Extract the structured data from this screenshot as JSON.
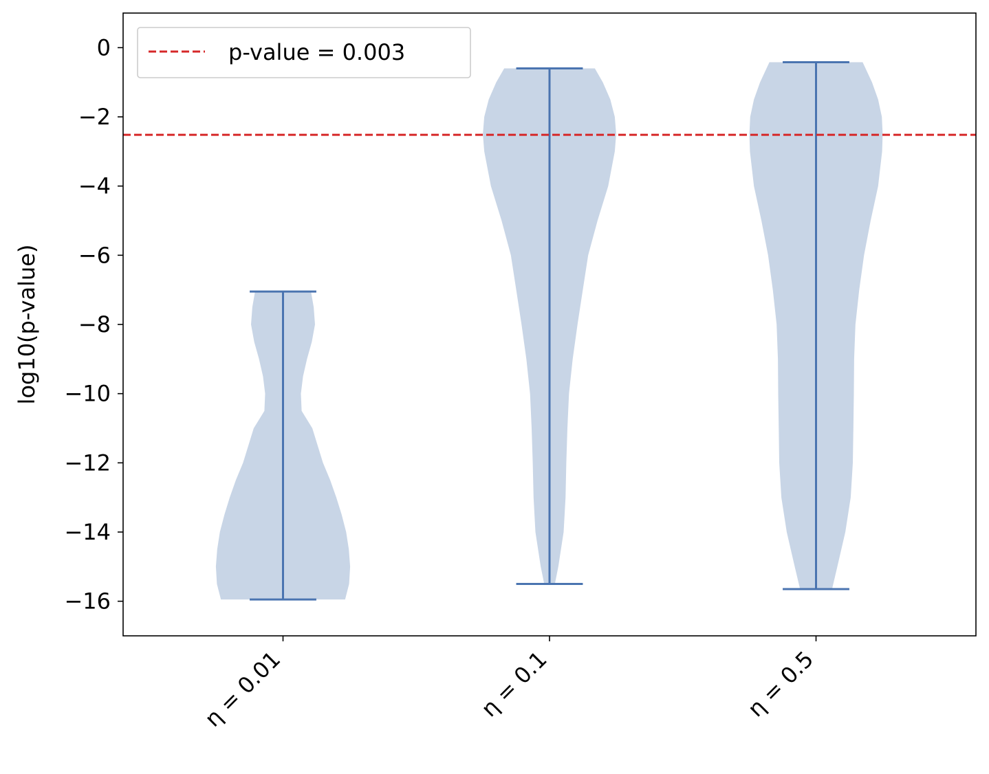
{
  "chart_data": {
    "type": "violin",
    "title": "",
    "xlabel": "",
    "ylabel": "log10(p-value)",
    "ylim": [
      -17,
      1
    ],
    "yticks": [
      0,
      -2,
      -4,
      -6,
      -8,
      -10,
      -12,
      -14,
      -16
    ],
    "ytick_labels": [
      "0",
      "−2",
      "−4",
      "−6",
      "−8",
      "−10",
      "−12",
      "−14",
      "−16"
    ],
    "categories": [
      "η = 0.01",
      "η = 0.1",
      "η = 0.5"
    ],
    "grid": false,
    "legend_position": "top-left",
    "violins": [
      {
        "category": "η = 0.01",
        "min": -15.95,
        "max": -7.05,
        "density_profile": [
          {
            "y": -15.95,
            "half_width": 0.233
          },
          {
            "y": -15.5,
            "half_width": 0.248
          },
          {
            "y": -15.0,
            "half_width": 0.252
          },
          {
            "y": -14.5,
            "half_width": 0.247
          },
          {
            "y": -14.0,
            "half_width": 0.237
          },
          {
            "y": -13.5,
            "half_width": 0.22
          },
          {
            "y": -13.0,
            "half_width": 0.2
          },
          {
            "y": -12.5,
            "half_width": 0.177
          },
          {
            "y": -12.0,
            "half_width": 0.15
          },
          {
            "y": -11.5,
            "half_width": 0.13
          },
          {
            "y": -11.0,
            "half_width": 0.11
          },
          {
            "y": -10.5,
            "half_width": 0.07
          },
          {
            "y": -10.0,
            "half_width": 0.067
          },
          {
            "y": -9.5,
            "half_width": 0.075
          },
          {
            "y": -9.0,
            "half_width": 0.09
          },
          {
            "y": -8.5,
            "half_width": 0.108
          },
          {
            "y": -8.0,
            "half_width": 0.12
          },
          {
            "y": -7.5,
            "half_width": 0.115
          },
          {
            "y": -7.05,
            "half_width": 0.105
          }
        ]
      },
      {
        "category": "η = 0.1",
        "min": -15.5,
        "max": -0.6,
        "density_profile": [
          {
            "y": -15.5,
            "half_width": 0.02
          },
          {
            "y": -15.0,
            "half_width": 0.033
          },
          {
            "y": -14.0,
            "half_width": 0.053
          },
          {
            "y": -13.0,
            "half_width": 0.06
          },
          {
            "y": -12.0,
            "half_width": 0.063
          },
          {
            "y": -11.0,
            "half_width": 0.067
          },
          {
            "y": -10.0,
            "half_width": 0.073
          },
          {
            "y": -9.0,
            "half_width": 0.087
          },
          {
            "y": -8.0,
            "half_width": 0.105
          },
          {
            "y": -7.0,
            "half_width": 0.125
          },
          {
            "y": -6.0,
            "half_width": 0.145
          },
          {
            "y": -5.0,
            "half_width": 0.18
          },
          {
            "y": -4.0,
            "half_width": 0.22
          },
          {
            "y": -3.0,
            "half_width": 0.245
          },
          {
            "y": -2.5,
            "half_width": 0.25
          },
          {
            "y": -2.0,
            "half_width": 0.245
          },
          {
            "y": -1.5,
            "half_width": 0.228
          },
          {
            "y": -1.0,
            "half_width": 0.2
          },
          {
            "y": -0.6,
            "half_width": 0.17
          }
        ]
      },
      {
        "category": "η = 0.5",
        "min": -15.65,
        "max": -0.42,
        "density_profile": [
          {
            "y": -15.65,
            "half_width": 0.06
          },
          {
            "y": -15.0,
            "half_width": 0.08
          },
          {
            "y": -14.0,
            "half_width": 0.11
          },
          {
            "y": -13.0,
            "half_width": 0.13
          },
          {
            "y": -12.0,
            "half_width": 0.138
          },
          {
            "y": -11.0,
            "half_width": 0.14
          },
          {
            "y": -10.0,
            "half_width": 0.142
          },
          {
            "y": -9.0,
            "half_width": 0.143
          },
          {
            "y": -8.0,
            "half_width": 0.148
          },
          {
            "y": -7.0,
            "half_width": 0.162
          },
          {
            "y": -6.0,
            "half_width": 0.18
          },
          {
            "y": -5.0,
            "half_width": 0.205
          },
          {
            "y": -4.0,
            "half_width": 0.233
          },
          {
            "y": -3.0,
            "half_width": 0.248
          },
          {
            "y": -2.5,
            "half_width": 0.25
          },
          {
            "y": -2.0,
            "half_width": 0.247
          },
          {
            "y": -1.5,
            "half_width": 0.233
          },
          {
            "y": -1.0,
            "half_width": 0.21
          },
          {
            "y": -0.42,
            "half_width": 0.175
          }
        ]
      }
    ],
    "reference_line": {
      "label": "p-value = 0.003",
      "y": -2.52,
      "style": "dashed",
      "color": "#d62728"
    },
    "colors": {
      "violin_fill": "#c8d5e6",
      "violin_line": "#4a74b0",
      "reference": "#d62728",
      "legend_border": "#cccccc"
    }
  }
}
